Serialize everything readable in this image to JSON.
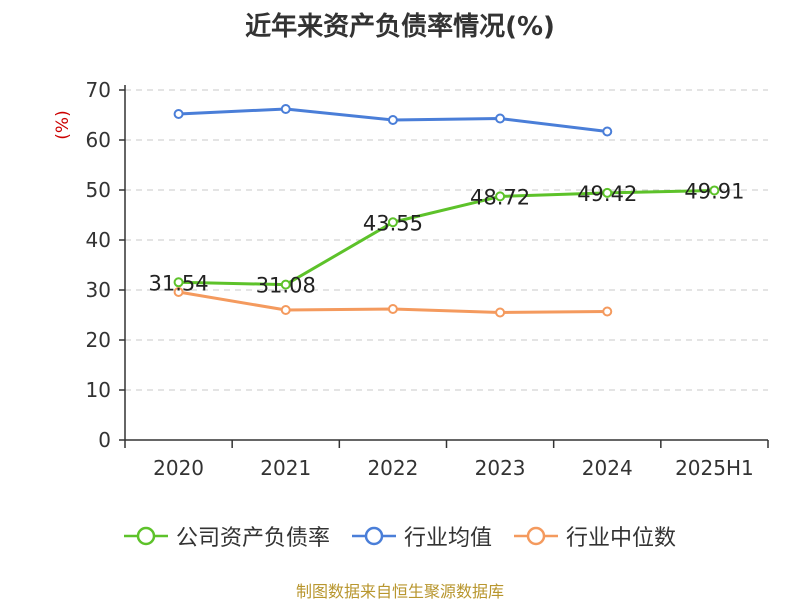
{
  "chart_data": {
    "type": "line",
    "title": "近年来资产负债率情况(%)",
    "ylabel": "(%)",
    "xlabel": "",
    "categories": [
      "2020",
      "2021",
      "2022",
      "2023",
      "2024",
      "2025H1"
    ],
    "ylim": [
      0,
      70
    ],
    "yticks": [
      0,
      10,
      20,
      30,
      40,
      50,
      60,
      70
    ],
    "grid": true,
    "legend_position": "bottom",
    "series": [
      {
        "name": "公司资产负债率",
        "color": "#5dc22a",
        "values": [
          31.54,
          31.08,
          43.55,
          48.72,
          49.42,
          49.91
        ],
        "labels": [
          "31.54",
          "31.08",
          "43.55",
          "48.72",
          "49.42",
          "49.91"
        ]
      },
      {
        "name": "行业均值",
        "color": "#4a7ed8",
        "values": [
          65.2,
          66.2,
          64.0,
          64.3,
          61.7,
          null
        ]
      },
      {
        "name": "行业中位数",
        "color": "#f49a5e",
        "values": [
          29.6,
          26.0,
          26.2,
          25.5,
          25.7,
          null
        ]
      }
    ]
  },
  "source": "制图数据来自恒生聚源数据库"
}
